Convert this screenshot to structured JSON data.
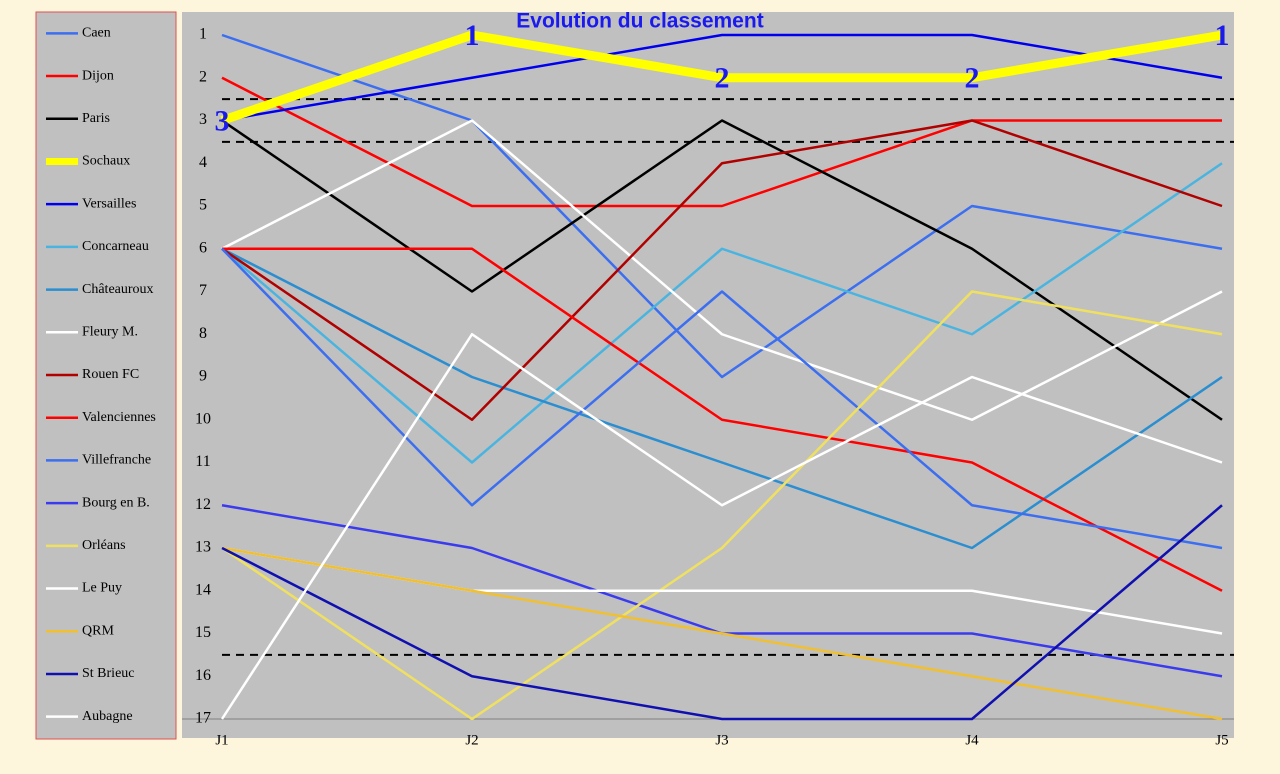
{
  "chart_data": {
    "type": "line",
    "title": "Evolution du classement",
    "categories": [
      "J1",
      "J2",
      "J3",
      "J4",
      "J5"
    ],
    "ylim": [
      1,
      17
    ],
    "y_inverted": true,
    "yticks": [
      1,
      2,
      3,
      4,
      5,
      6,
      7,
      8,
      9,
      10,
      11,
      12,
      13,
      14,
      15,
      16,
      17
    ],
    "reference_lines": [
      2.5,
      3.5,
      15.5
    ],
    "legend": "left",
    "series": [
      {
        "name": "Caen",
        "color": "#3b6ef0",
        "values": [
          1,
          3,
          9,
          5,
          6
        ]
      },
      {
        "name": "Dijon",
        "color": "#ff0000",
        "values": [
          2,
          5,
          5,
          3,
          3
        ]
      },
      {
        "name": "Paris",
        "color": "#000000",
        "values": [
          3,
          7,
          3,
          6,
          10
        ]
      },
      {
        "name": "Sochaux",
        "color": "#ffff00",
        "values": [
          3,
          1,
          2,
          2,
          1
        ],
        "bold": true,
        "data_labels": true
      },
      {
        "name": "Versailles",
        "color": "#0000ee",
        "values": [
          3,
          2,
          1,
          1,
          2
        ]
      },
      {
        "name": "Concarneau",
        "color": "#4ab4e0",
        "values": [
          6,
          11,
          6,
          8,
          4
        ]
      },
      {
        "name": "Châteauroux",
        "color": "#2a8ed0",
        "values": [
          6,
          9,
          11,
          13,
          9
        ]
      },
      {
        "name": "Fleury M.",
        "color": "#ffffff",
        "values": [
          6,
          3,
          8,
          10,
          7
        ]
      },
      {
        "name": "Rouen FC",
        "color": "#b00000",
        "values": [
          6,
          10,
          4,
          3,
          5
        ]
      },
      {
        "name": "Valenciennes",
        "color": "#ff0000",
        "values": [
          6,
          6,
          10,
          11,
          14
        ]
      },
      {
        "name": "Villefranche",
        "color": "#3b6ef0",
        "values": [
          6,
          12,
          7,
          12,
          13
        ]
      },
      {
        "name": "Bourg en B.",
        "color": "#3a3aee",
        "values": [
          12,
          13,
          15,
          15,
          16
        ]
      },
      {
        "name": "Orléans",
        "color": "#f0e060",
        "values": [
          13,
          17,
          13,
          7,
          8
        ]
      },
      {
        "name": "Le Puy",
        "color": "#ffffff",
        "values": [
          13,
          14,
          14,
          14,
          15
        ]
      },
      {
        "name": "QRM",
        "color": "#f0c030",
        "values": [
          13,
          14,
          15,
          16,
          17
        ]
      },
      {
        "name": "St Brieuc",
        "color": "#1010b0",
        "values": [
          13,
          16,
          17,
          17,
          12
        ]
      },
      {
        "name": "Aubagne",
        "color": "#ffffff",
        "values": [
          17,
          8,
          12,
          9,
          11
        ]
      }
    ]
  }
}
